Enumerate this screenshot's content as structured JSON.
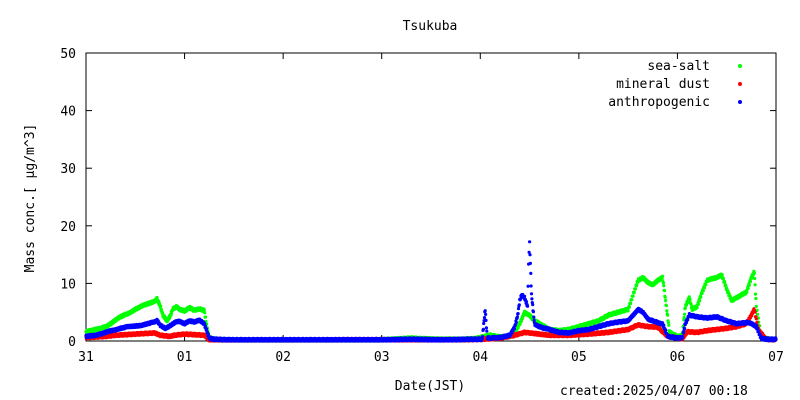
{
  "chart_data": {
    "type": "scatter",
    "title": "Tsukuba",
    "xlabel": "Date(JST)",
    "ylabel": "Mass conc.[ μg/m^3]",
    "ylim": [
      0,
      50
    ],
    "yticks": [
      "0",
      "10",
      "20",
      "30",
      "40",
      "50"
    ],
    "xticks": [
      "31",
      "01",
      "02",
      "03",
      "04",
      "05",
      "06",
      "07"
    ],
    "xlim_days": [
      0,
      7
    ],
    "grid": false,
    "legend_position": "top-right",
    "series": [
      {
        "name": "sea-salt",
        "color": "#00ff00",
        "points": [
          [
            0.0,
            1.6
          ],
          [
            0.05,
            1.8
          ],
          [
            0.1,
            2.0
          ],
          [
            0.15,
            2.2
          ],
          [
            0.2,
            2.5
          ],
          [
            0.25,
            3.0
          ],
          [
            0.3,
            3.6
          ],
          [
            0.35,
            4.2
          ],
          [
            0.4,
            4.6
          ],
          [
            0.45,
            5.0
          ],
          [
            0.5,
            5.5
          ],
          [
            0.55,
            5.9
          ],
          [
            0.6,
            6.3
          ],
          [
            0.65,
            6.6
          ],
          [
            0.7,
            7.0
          ],
          [
            0.72,
            7.3
          ],
          [
            0.75,
            6.2
          ],
          [
            0.78,
            4.5
          ],
          [
            0.82,
            3.5
          ],
          [
            0.85,
            4.2
          ],
          [
            0.88,
            5.5
          ],
          [
            0.92,
            6.0
          ],
          [
            0.95,
            5.5
          ],
          [
            1.0,
            5.2
          ],
          [
            1.05,
            5.8
          ],
          [
            1.1,
            5.3
          ],
          [
            1.15,
            5.6
          ],
          [
            1.2,
            5.3
          ],
          [
            1.22,
            3.0
          ],
          [
            1.25,
            0.6
          ],
          [
            1.3,
            0.3
          ],
          [
            1.4,
            0.2
          ],
          [
            1.6,
            0.1
          ],
          [
            1.8,
            0.1
          ],
          [
            2.0,
            0.1
          ],
          [
            2.2,
            0.1
          ],
          [
            2.4,
            0.1
          ],
          [
            2.6,
            0.1
          ],
          [
            2.8,
            0.1
          ],
          [
            3.0,
            0.2
          ],
          [
            3.2,
            0.4
          ],
          [
            3.3,
            0.5
          ],
          [
            3.4,
            0.4
          ],
          [
            3.6,
            0.3
          ],
          [
            3.8,
            0.3
          ],
          [
            3.95,
            0.4
          ],
          [
            4.05,
            0.8
          ],
          [
            4.1,
            1.0
          ],
          [
            4.2,
            0.7
          ],
          [
            4.3,
            0.8
          ],
          [
            4.35,
            1.5
          ],
          [
            4.4,
            3.0
          ],
          [
            4.45,
            5.0
          ],
          [
            4.5,
            4.5
          ],
          [
            4.55,
            3.5
          ],
          [
            4.6,
            3.0
          ],
          [
            4.65,
            2.5
          ],
          [
            4.7,
            2.0
          ],
          [
            4.8,
            1.8
          ],
          [
            4.9,
            2.0
          ],
          [
            5.0,
            2.5
          ],
          [
            5.1,
            3.0
          ],
          [
            5.2,
            3.5
          ],
          [
            5.3,
            4.5
          ],
          [
            5.4,
            5.0
          ],
          [
            5.5,
            5.5
          ],
          [
            5.55,
            8.0
          ],
          [
            5.6,
            10.5
          ],
          [
            5.65,
            11.0
          ],
          [
            5.7,
            10.2
          ],
          [
            5.75,
            9.8
          ],
          [
            5.8,
            10.5
          ],
          [
            5.85,
            11.0
          ],
          [
            5.88,
            7.0
          ],
          [
            5.92,
            1.5
          ],
          [
            6.0,
            0.8
          ],
          [
            6.05,
            1.0
          ],
          [
            6.08,
            6.0
          ],
          [
            6.12,
            7.5
          ],
          [
            6.15,
            5.5
          ],
          [
            6.2,
            6.0
          ],
          [
            6.25,
            8.5
          ],
          [
            6.3,
            10.5
          ],
          [
            6.35,
            10.8
          ],
          [
            6.4,
            11.0
          ],
          [
            6.45,
            11.5
          ],
          [
            6.5,
            9.0
          ],
          [
            6.55,
            7.0
          ],
          [
            6.6,
            7.5
          ],
          [
            6.65,
            8.0
          ],
          [
            6.7,
            8.5
          ],
          [
            6.75,
            11.0
          ],
          [
            6.78,
            12.0
          ],
          [
            6.8,
            6.0
          ],
          [
            6.85,
            0.6
          ],
          [
            6.9,
            0.4
          ],
          [
            6.95,
            0.3
          ],
          [
            7.0,
            0.3
          ]
        ]
      },
      {
        "name": "mineral dust",
        "color": "#ff0000",
        "points": [
          [
            0.0,
            0.6
          ],
          [
            0.1,
            0.7
          ],
          [
            0.2,
            0.8
          ],
          [
            0.3,
            1.0
          ],
          [
            0.4,
            1.1
          ],
          [
            0.5,
            1.2
          ],
          [
            0.6,
            1.3
          ],
          [
            0.7,
            1.4
          ],
          [
            0.75,
            1.0
          ],
          [
            0.85,
            0.8
          ],
          [
            0.9,
            1.0
          ],
          [
            1.0,
            1.2
          ],
          [
            1.1,
            1.1
          ],
          [
            1.2,
            1.0
          ],
          [
            1.25,
            0.2
          ],
          [
            1.4,
            0.1
          ],
          [
            1.8,
            0.1
          ],
          [
            2.2,
            0.1
          ],
          [
            2.6,
            0.2
          ],
          [
            3.0,
            0.2
          ],
          [
            3.4,
            0.2
          ],
          [
            3.8,
            0.2
          ],
          [
            4.0,
            0.3
          ],
          [
            4.2,
            0.5
          ],
          [
            4.35,
            1.0
          ],
          [
            4.45,
            1.5
          ],
          [
            4.55,
            1.3
          ],
          [
            4.7,
            1.0
          ],
          [
            4.9,
            1.0
          ],
          [
            5.1,
            1.2
          ],
          [
            5.3,
            1.5
          ],
          [
            5.5,
            2.0
          ],
          [
            5.6,
            2.8
          ],
          [
            5.7,
            2.5
          ],
          [
            5.8,
            2.4
          ],
          [
            5.9,
            0.8
          ],
          [
            6.05,
            0.4
          ],
          [
            6.1,
            1.6
          ],
          [
            6.2,
            1.5
          ],
          [
            6.3,
            1.8
          ],
          [
            6.4,
            2.0
          ],
          [
            6.5,
            2.2
          ],
          [
            6.6,
            2.5
          ],
          [
            6.7,
            3.0
          ],
          [
            6.75,
            4.5
          ],
          [
            6.78,
            5.5
          ],
          [
            6.82,
            2.0
          ],
          [
            6.9,
            0.3
          ],
          [
            7.0,
            0.2
          ]
        ]
      },
      {
        "name": "anthropogenic",
        "color": "#0000ff",
        "points": [
          [
            0.0,
            0.8
          ],
          [
            0.05,
            0.9
          ],
          [
            0.1,
            1.0
          ],
          [
            0.15,
            1.2
          ],
          [
            0.2,
            1.5
          ],
          [
            0.25,
            1.8
          ],
          [
            0.3,
            2.0
          ],
          [
            0.35,
            2.2
          ],
          [
            0.4,
            2.4
          ],
          [
            0.45,
            2.5
          ],
          [
            0.5,
            2.6
          ],
          [
            0.55,
            2.7
          ],
          [
            0.6,
            2.9
          ],
          [
            0.65,
            3.1
          ],
          [
            0.7,
            3.3
          ],
          [
            0.72,
            3.6
          ],
          [
            0.75,
            2.8
          ],
          [
            0.8,
            2.2
          ],
          [
            0.85,
            2.6
          ],
          [
            0.9,
            3.2
          ],
          [
            0.95,
            3.4
          ],
          [
            1.0,
            3.0
          ],
          [
            1.05,
            3.5
          ],
          [
            1.1,
            3.3
          ],
          [
            1.15,
            3.6
          ],
          [
            1.2,
            3.0
          ],
          [
            1.25,
            0.5
          ],
          [
            1.3,
            0.3
          ],
          [
            1.5,
            0.2
          ],
          [
            1.8,
            0.2
          ],
          [
            2.2,
            0.2
          ],
          [
            2.6,
            0.2
          ],
          [
            3.0,
            0.2
          ],
          [
            3.3,
            0.3
          ],
          [
            3.6,
            0.2
          ],
          [
            3.9,
            0.3
          ],
          [
            4.02,
            0.3
          ],
          [
            4.05,
            5.5
          ],
          [
            4.07,
            0.5
          ],
          [
            4.2,
            0.6
          ],
          [
            4.3,
            1.0
          ],
          [
            4.35,
            2.5
          ],
          [
            4.38,
            4.5
          ],
          [
            4.4,
            7.0
          ],
          [
            4.42,
            8.0
          ],
          [
            4.45,
            7.5
          ],
          [
            4.48,
            6.0
          ],
          [
            4.49,
            13.5
          ],
          [
            4.5,
            17.0
          ],
          [
            4.52,
            8.0
          ],
          [
            4.55,
            3.0
          ],
          [
            4.6,
            2.5
          ],
          [
            4.65,
            2.2
          ],
          [
            4.7,
            2.0
          ],
          [
            4.8,
            1.5
          ],
          [
            4.9,
            1.4
          ],
          [
            5.0,
            1.8
          ],
          [
            5.1,
            2.0
          ],
          [
            5.2,
            2.5
          ],
          [
            5.3,
            3.0
          ],
          [
            5.4,
            3.3
          ],
          [
            5.5,
            3.5
          ],
          [
            5.55,
            4.5
          ],
          [
            5.6,
            5.5
          ],
          [
            5.65,
            5.0
          ],
          [
            5.7,
            3.8
          ],
          [
            5.8,
            3.2
          ],
          [
            5.85,
            3.0
          ],
          [
            5.9,
            0.8
          ],
          [
            6.0,
            0.5
          ],
          [
            6.05,
            0.6
          ],
          [
            6.08,
            3.0
          ],
          [
            6.12,
            4.5
          ],
          [
            6.2,
            4.2
          ],
          [
            6.3,
            4.0
          ],
          [
            6.4,
            4.2
          ],
          [
            6.5,
            3.5
          ],
          [
            6.6,
            3.0
          ],
          [
            6.7,
            3.2
          ],
          [
            6.75,
            3.0
          ],
          [
            6.8,
            2.5
          ],
          [
            6.85,
            0.5
          ],
          [
            6.9,
            0.3
          ],
          [
            7.0,
            0.3
          ]
        ]
      }
    ]
  },
  "footer": {
    "created": "created:2025/04/07 00:18"
  }
}
